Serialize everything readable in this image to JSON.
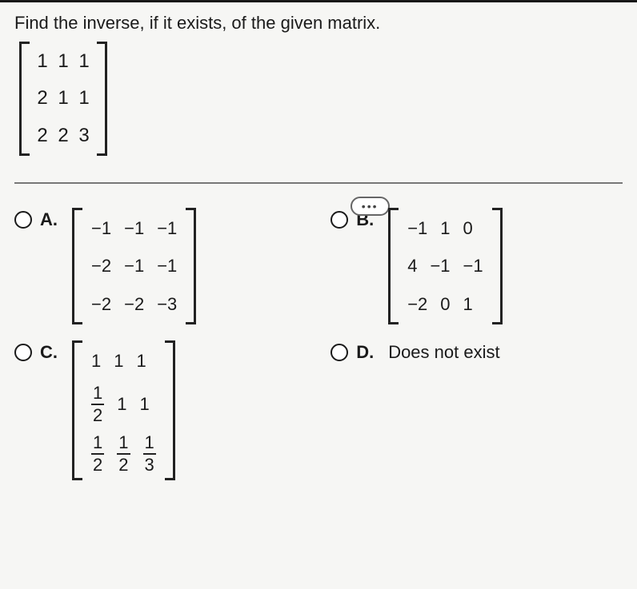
{
  "prompt": "Find the inverse, if it exists, of the given matrix.",
  "dots": "•••",
  "given_matrix": {
    "rows": [
      [
        "1",
        "1",
        "1"
      ],
      [
        "2",
        "1",
        "1"
      ],
      [
        "2",
        "2",
        "3"
      ]
    ]
  },
  "options": {
    "A": {
      "label": "A.",
      "type": "matrix",
      "rows": [
        [
          "−1",
          "−1",
          "−1"
        ],
        [
          "−2",
          "−1",
          "−1"
        ],
        [
          "−2",
          "−2",
          "−3"
        ]
      ]
    },
    "B": {
      "label": "B.",
      "type": "matrix",
      "rows": [
        [
          "−1",
          "1",
          "0"
        ],
        [
          "4",
          "−1",
          "−1"
        ],
        [
          "−2",
          "0",
          "1"
        ]
      ]
    },
    "C": {
      "label": "C.",
      "type": "matrix_frac",
      "rows": [
        [
          {
            "t": "n",
            "v": "1"
          },
          {
            "t": "n",
            "v": "1"
          },
          {
            "t": "n",
            "v": "1"
          }
        ],
        [
          {
            "t": "f",
            "n": "1",
            "d": "2"
          },
          {
            "t": "n",
            "v": "1"
          },
          {
            "t": "n",
            "v": "1"
          }
        ],
        [
          {
            "t": "f",
            "n": "1",
            "d": "2"
          },
          {
            "t": "f",
            "n": "1",
            "d": "2"
          },
          {
            "t": "f",
            "n": "1",
            "d": "3"
          }
        ]
      ]
    },
    "D": {
      "label": "D.",
      "type": "text",
      "text": "Does not exist"
    }
  }
}
